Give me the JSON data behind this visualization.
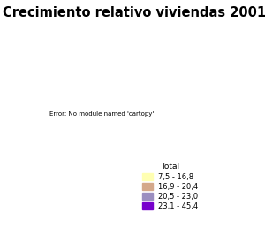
{
  "title": "Crecimiento relativo viviendas 2001/2011",
  "title_fontsize": 10.5,
  "legend_title": "Total",
  "legend_labels": [
    "7,5 - 16,8",
    "16,9 - 20,4",
    "20,5 - 23,0",
    "23,1 - 45,4"
  ],
  "colors": [
    "#FFFFB2",
    "#D4A88A",
    "#9B8EC0",
    "#7700CC"
  ],
  "background_color": "white",
  "figsize": [
    3.0,
    2.75
  ],
  "dpi": 100,
  "province_colors": {
    "A Coruña": 3,
    "Lugo": 0,
    "Ourense": 2,
    "Pontevedra": 2,
    "Asturias": 2,
    "Cantabria": 2,
    "Álava": 1,
    "Araba/Álava": 1,
    "Vizcaya": 3,
    "Bizkaia": 3,
    "Guipúzcoa": 3,
    "Gipuzkoa": 3,
    "Navarra": 0,
    "Navarra/Nafarroa": 0,
    "La Rioja": 2,
    "Huesca": 0,
    "Zaragoza": 0,
    "Teruel": 0,
    "Barcelona": 3,
    "Girona": 3,
    "Lleida": 2,
    "Tarragona": 2,
    "Castellón": 3,
    "Castellón/Castelló": 3,
    "Valencia": 3,
    "Valencia/València": 3,
    "Alicante": 3,
    "Alicante/Alacant": 3,
    "Murcia": 3,
    "Almería": 3,
    "Almeria": 3,
    "Granada": 3,
    "Málaga": 3,
    "Malaga": 3,
    "Cádiz": 3,
    "Cadiz": 3,
    "Sevilla": 3,
    "Huelva": 2,
    "Córdoba": 2,
    "Cordoba": 2,
    "Jaén": 2,
    "Jaen": 2,
    "Badajoz": 2,
    "Cáceres": 1,
    "Caceres": 1,
    "Toledo": 2,
    "Ciudad Real": 2,
    "Albacete": 2,
    "Cuenca": 1,
    "Guadalajara": 3,
    "Burgos": 0,
    "León": 1,
    "Leon": 1,
    "Palencia": 0,
    "Salamanca": 0,
    "Segovia": 0,
    "Soria": 0,
    "Valladolid": 0,
    "Zamora": 0,
    "Ávila": 1,
    "Avila": 1,
    "Madrid": 3,
    "Islas Baleares": 2,
    "Illes Balears": 2,
    "Baleares": 2,
    "Las Palmas": 2,
    "Santa Cruz de Tenerife": 2
  }
}
